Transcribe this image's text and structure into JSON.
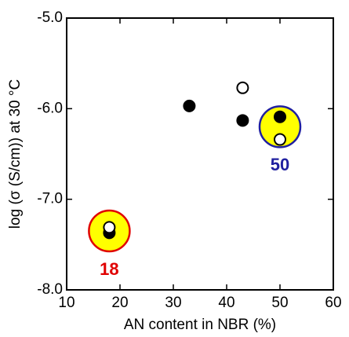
{
  "chart_data": {
    "type": "scatter",
    "xlabel": "AN content in NBR (%)",
    "ylabel": "log (σ (S/cm)) at 30 °C",
    "xlim": [
      10,
      60
    ],
    "xticks": [
      10,
      20,
      30,
      40,
      50,
      60
    ],
    "ylim": [
      -8,
      -5
    ],
    "yticks": [
      {
        "value": -8,
        "label": "-8.0"
      },
      {
        "value": -7,
        "label": "-7.0"
      },
      {
        "value": -6,
        "label": "-6.0"
      },
      {
        "value": -5,
        "label": "-5.0"
      }
    ],
    "highlights": [
      {
        "x": 18,
        "y": -7.35,
        "label": "18",
        "fill": "#ffff00",
        "edge": "#e00000"
      },
      {
        "x": 50,
        "y": -6.2,
        "label": "50",
        "fill": "#ffff00",
        "edge": "#2020a0"
      }
    ],
    "series": [
      {
        "marker": "filled",
        "color": "#000000",
        "x": [
          18,
          33,
          43,
          50
        ],
        "y": [
          -7.37,
          -5.97,
          -6.13,
          -6.09
        ]
      },
      {
        "marker": "open",
        "color": "#000000",
        "x": [
          18,
          43,
          50
        ],
        "y": [
          -7.31,
          -5.77,
          -6.34
        ]
      }
    ]
  }
}
